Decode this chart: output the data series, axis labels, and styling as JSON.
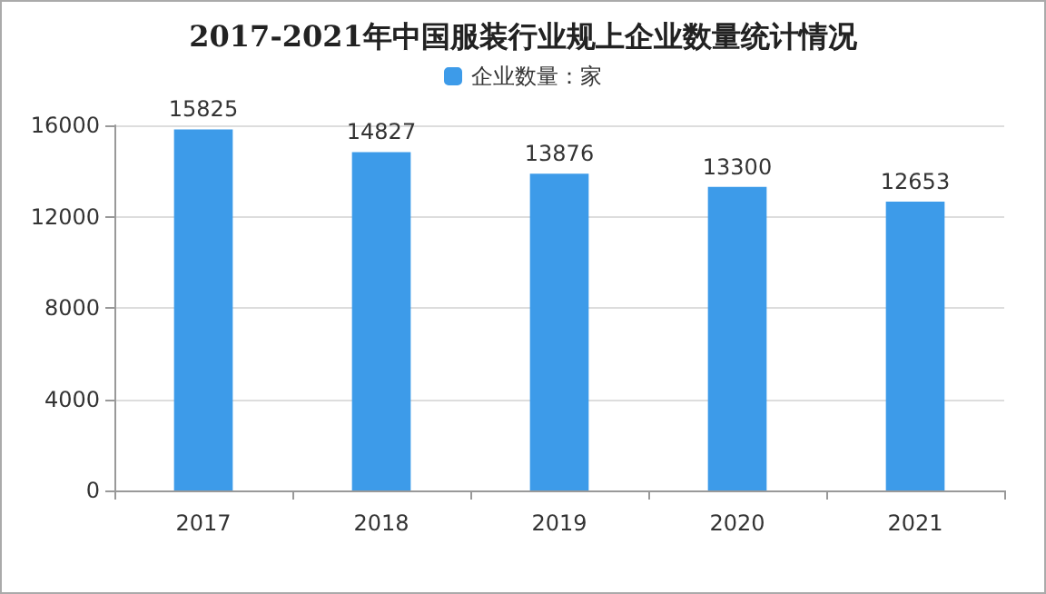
{
  "chart_data": {
    "type": "bar",
    "title": "2017-2021年中国服装行业规上企业数量统计情况",
    "categories": [
      "2017",
      "2018",
      "2019",
      "2020",
      "2021"
    ],
    "series": [
      {
        "name": "企业数量：家",
        "color": "#3d9be9",
        "values": [
          15825,
          14827,
          13876,
          13300,
          12653
        ]
      }
    ],
    "ylim": [
      0,
      16000
    ],
    "yticks": [
      0,
      4000,
      8000,
      12000,
      16000
    ],
    "grid": "y",
    "legend": "top",
    "data_labels": true
  }
}
